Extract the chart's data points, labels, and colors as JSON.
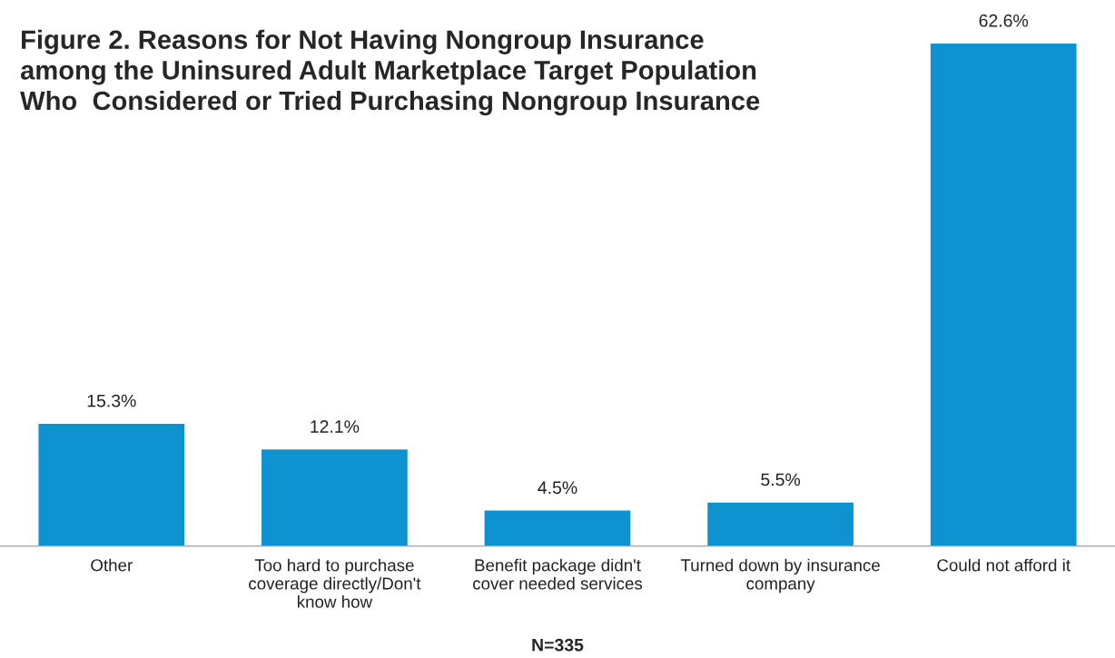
{
  "chart_data": {
    "type": "bar",
    "title": "Figure 2. Reasons for Not Having Nongroup Insurance\namong the Uninsured Adult Marketplace Target Population\nWho  Considered or Tried Purchasing Nongroup Insurance",
    "categories": [
      "Other",
      "Too hard to purchase\ncoverage directly/Don't\nknow how",
      "Benefit package didn't\ncover needed services",
      "Turned down by insurance\ncompany",
      "Could not afford it"
    ],
    "values": [
      15.3,
      12.1,
      4.5,
      5.5,
      62.6
    ],
    "value_labels": [
      "15.3%",
      "12.1%",
      "4.5%",
      "5.5%",
      "62.6%"
    ],
    "color": "#0e93d0",
    "annotations": [
      "N=335"
    ],
    "grid": false,
    "legend": false
  }
}
